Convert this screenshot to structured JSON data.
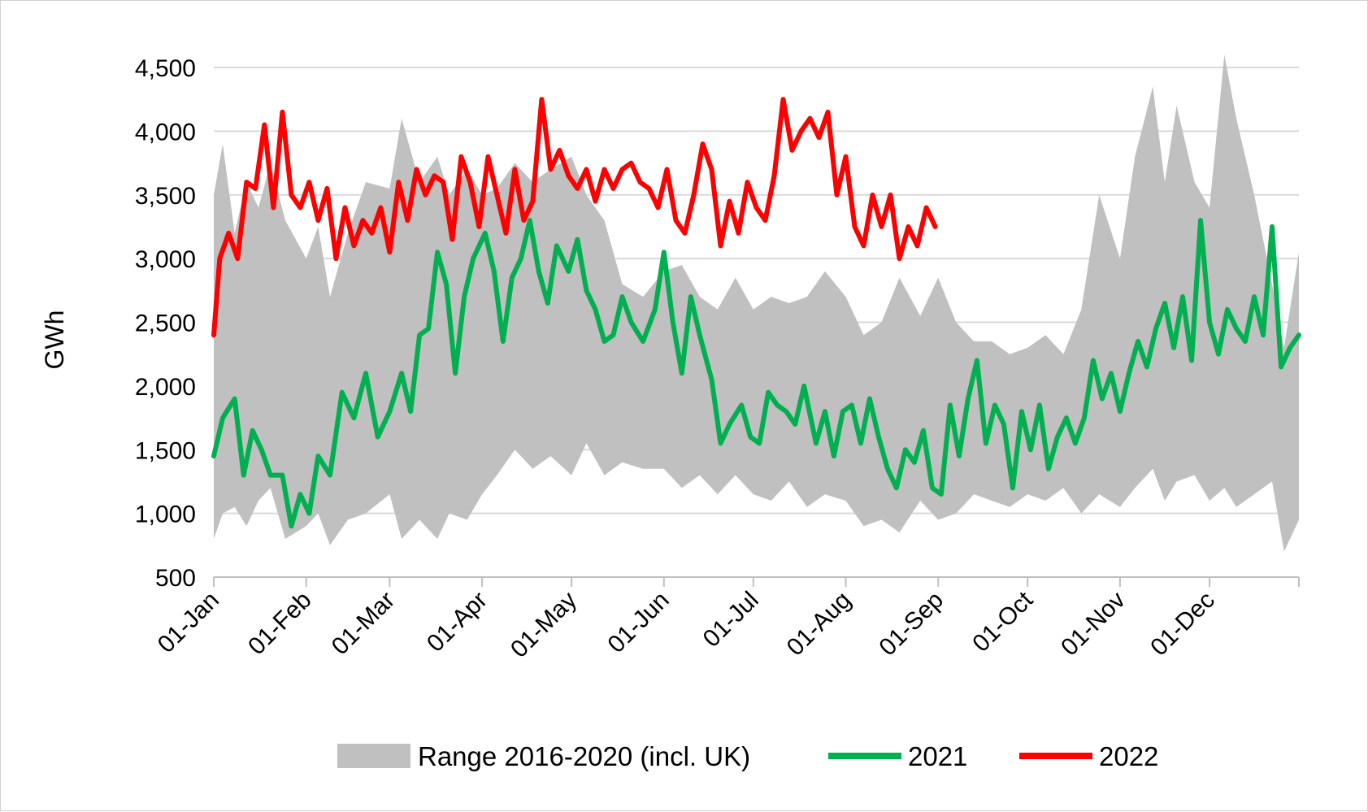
{
  "chart_data": {
    "type": "line",
    "ylabel": "GWh",
    "ylim": [
      500,
      4500
    ],
    "yticks": [
      "500",
      "1,000",
      "1,500",
      "2,000",
      "2,500",
      "3,000",
      "3,500",
      "4,000",
      "4,500"
    ],
    "ytick_values": [
      500,
      1000,
      1500,
      2000,
      2500,
      3000,
      3500,
      4000,
      4500
    ],
    "xlim_day_of_year": [
      1,
      365
    ],
    "xtick_labels": [
      "01-Jan",
      "01-Feb",
      "01-Mar",
      "01-Apr",
      "01-May",
      "01-Jun",
      "01-Jul",
      "01-Aug",
      "01-Sep",
      "01-Oct",
      "01-Nov",
      "01-Dec"
    ],
    "xtick_day_of_year": [
      1,
      32,
      60,
      91,
      121,
      152,
      182,
      213,
      244,
      274,
      305,
      335
    ],
    "grid": "horizontal",
    "legend_position": "bottom",
    "colors": {
      "range": "#c0c0c0",
      "y2021": "#00b050",
      "y2022": "#ff0000"
    },
    "series": [
      {
        "name": "Range 2016-2020 (incl. UK)",
        "kind": "band",
        "x": [
          1,
          4,
          8,
          12,
          16,
          20,
          25,
          32,
          36,
          40,
          46,
          52,
          60,
          64,
          70,
          76,
          80,
          86,
          91,
          96,
          102,
          108,
          114,
          121,
          126,
          132,
          138,
          145,
          152,
          158,
          164,
          170,
          176,
          182,
          188,
          194,
          200,
          206,
          213,
          219,
          225,
          231,
          238,
          244,
          250,
          256,
          262,
          268,
          274,
          280,
          286,
          292,
          298,
          305,
          310,
          316,
          320,
          324,
          330,
          335,
          340,
          344,
          350,
          356,
          360,
          365
        ],
        "lower": [
          800,
          1000,
          1050,
          900,
          1100,
          1200,
          800,
          900,
          1000,
          750,
          950,
          1000,
          1150,
          800,
          950,
          800,
          1000,
          950,
          1150,
          1300,
          1500,
          1350,
          1450,
          1300,
          1550,
          1300,
          1400,
          1350,
          1350,
          1200,
          1300,
          1150,
          1300,
          1150,
          1100,
          1250,
          1050,
          1150,
          1100,
          900,
          950,
          850,
          1100,
          950,
          1000,
          1150,
          1100,
          1050,
          1150,
          1100,
          1200,
          1000,
          1150,
          1050,
          1200,
          1350,
          1100,
          1250,
          1300,
          1100,
          1200,
          1050,
          1150,
          1250,
          700,
          950
        ],
        "upper": [
          3500,
          3900,
          3200,
          3600,
          3400,
          3750,
          3300,
          3000,
          3250,
          2700,
          3200,
          3600,
          3550,
          4100,
          3600,
          3800,
          3500,
          3700,
          3500,
          3550,
          3750,
          3600,
          3700,
          3800,
          3500,
          3300,
          2800,
          2700,
          2900,
          2950,
          2700,
          2600,
          2850,
          2600,
          2700,
          2650,
          2700,
          2900,
          2700,
          2400,
          2500,
          2850,
          2550,
          2850,
          2500,
          2350,
          2350,
          2250,
          2300,
          2400,
          2250,
          2600,
          3500,
          3000,
          3800,
          4350,
          3600,
          4200,
          3600,
          3400,
          4600,
          4100,
          3500,
          2800,
          2300,
          3050
        ]
      },
      {
        "name": "2021",
        "kind": "line",
        "x": [
          1,
          4,
          8,
          11,
          14,
          17,
          20,
          24,
          27,
          30,
          33,
          36,
          40,
          44,
          48,
          52,
          56,
          60,
          64,
          67,
          70,
          73,
          76,
          79,
          82,
          85,
          88,
          92,
          95,
          98,
          101,
          104,
          107,
          110,
          113,
          116,
          120,
          123,
          126,
          129,
          132,
          135,
          138,
          141,
          145,
          149,
          152,
          155,
          158,
          161,
          164,
          168,
          171,
          174,
          178,
          181,
          184,
          187,
          190,
          193,
          196,
          199,
          203,
          206,
          209,
          212,
          215,
          218,
          221,
          224,
          227,
          230,
          233,
          236,
          239,
          242,
          245,
          248,
          251,
          254,
          257,
          260,
          263,
          266,
          269,
          272,
          275,
          278,
          281,
          284,
          287,
          290,
          293,
          296,
          299,
          302,
          305,
          308,
          311,
          314,
          317,
          320,
          323,
          326,
          329,
          332,
          335,
          338,
          341,
          344,
          347,
          350,
          353,
          356,
          359,
          362,
          365
        ],
        "values": [
          1450,
          1750,
          1900,
          1300,
          1650,
          1500,
          1300,
          1300,
          900,
          1150,
          1000,
          1450,
          1300,
          1950,
          1750,
          2100,
          1600,
          1800,
          2100,
          1800,
          2400,
          2450,
          3050,
          2800,
          2100,
          2700,
          3000,
          3200,
          2900,
          2350,
          2850,
          3000,
          3300,
          2900,
          2650,
          3100,
          2900,
          3150,
          2750,
          2600,
          2350,
          2400,
          2700,
          2500,
          2350,
          2600,
          3050,
          2500,
          2100,
          2700,
          2400,
          2050,
          1550,
          1700,
          1850,
          1600,
          1550,
          1950,
          1850,
          1800,
          1700,
          2000,
          1550,
          1800,
          1450,
          1800,
          1850,
          1550,
          1900,
          1600,
          1350,
          1200,
          1500,
          1400,
          1650,
          1200,
          1150,
          1850,
          1450,
          1900,
          2200,
          1550,
          1850,
          1700,
          1200,
          1800,
          1500,
          1850,
          1350,
          1600,
          1750,
          1550,
          1750,
          2200,
          1900,
          2100,
          1800,
          2100,
          2350,
          2150,
          2450,
          2650,
          2300,
          2700,
          2200,
          3300,
          2500,
          2250,
          2600,
          2450,
          2350,
          2700,
          2400,
          3250,
          2150,
          2300,
          2400
        ]
      },
      {
        "name": "2022",
        "kind": "line",
        "x": [
          1,
          3,
          6,
          9,
          12,
          15,
          18,
          21,
          24,
          27,
          30,
          33,
          36,
          39,
          42,
          45,
          48,
          51,
          54,
          57,
          60,
          63,
          66,
          69,
          72,
          75,
          78,
          81,
          84,
          87,
          90,
          93,
          96,
          99,
          102,
          105,
          108,
          111,
          114,
          117,
          120,
          123,
          126,
          129,
          132,
          135,
          138,
          141,
          144,
          147,
          150,
          153,
          156,
          159,
          162,
          165,
          168,
          171,
          174,
          177,
          180,
          183,
          186,
          189,
          192,
          195,
          198,
          201,
          204,
          207,
          210,
          213,
          216,
          219,
          222,
          225,
          228,
          231,
          234,
          237,
          240,
          243
        ],
        "values": [
          2400,
          3000,
          3200,
          3000,
          3600,
          3550,
          4050,
          3400,
          4150,
          3500,
          3400,
          3600,
          3300,
          3550,
          3000,
          3400,
          3100,
          3300,
          3200,
          3400,
          3050,
          3600,
          3300,
          3700,
          3500,
          3650,
          3600,
          3150,
          3800,
          3600,
          3250,
          3800,
          3500,
          3200,
          3700,
          3300,
          3450,
          4250,
          3700,
          3850,
          3650,
          3550,
          3700,
          3450,
          3700,
          3550,
          3700,
          3750,
          3600,
          3550,
          3400,
          3700,
          3300,
          3200,
          3500,
          3900,
          3700,
          3100,
          3450,
          3200,
          3600,
          3400,
          3300,
          3650,
          4250,
          3850,
          4000,
          4100,
          3950,
          4150,
          3500,
          3800,
          3250,
          3100,
          3500,
          3250,
          3500,
          3000,
          3250,
          3100,
          3400,
          3250
        ]
      }
    ]
  }
}
